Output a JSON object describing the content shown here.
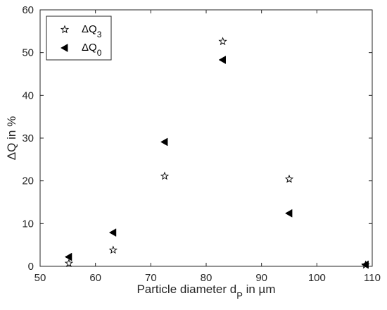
{
  "chart_data": {
    "type": "scatter",
    "xlabel": "Particle diameter d",
    "xlabel_sub": "P",
    "xlabel_suffix": " in µm",
    "ylabel": "ΔQ in %",
    "xlim": [
      50,
      110
    ],
    "ylim": [
      0,
      60
    ],
    "xticks": [
      50,
      60,
      70,
      80,
      90,
      100,
      110
    ],
    "yticks": [
      0,
      10,
      20,
      30,
      40,
      50,
      60
    ],
    "grid": false,
    "legend_position": "top-left",
    "series": [
      {
        "name": "ΔQ",
        "name_sub": "3",
        "marker": "star",
        "color": "#000000",
        "x": [
          55.2,
          63.2,
          72.5,
          83.0,
          95.0,
          108.8
        ],
        "y": [
          0.7,
          3.8,
          21.1,
          52.6,
          20.4,
          0.3
        ]
      },
      {
        "name": "ΔQ",
        "name_sub": "0",
        "marker": "triangle-left",
        "color": "#000000",
        "x": [
          55.2,
          63.2,
          72.5,
          83.0,
          95.0,
          108.8
        ],
        "y": [
          2.2,
          7.9,
          29.1,
          48.3,
          12.4,
          0.4
        ]
      }
    ]
  }
}
